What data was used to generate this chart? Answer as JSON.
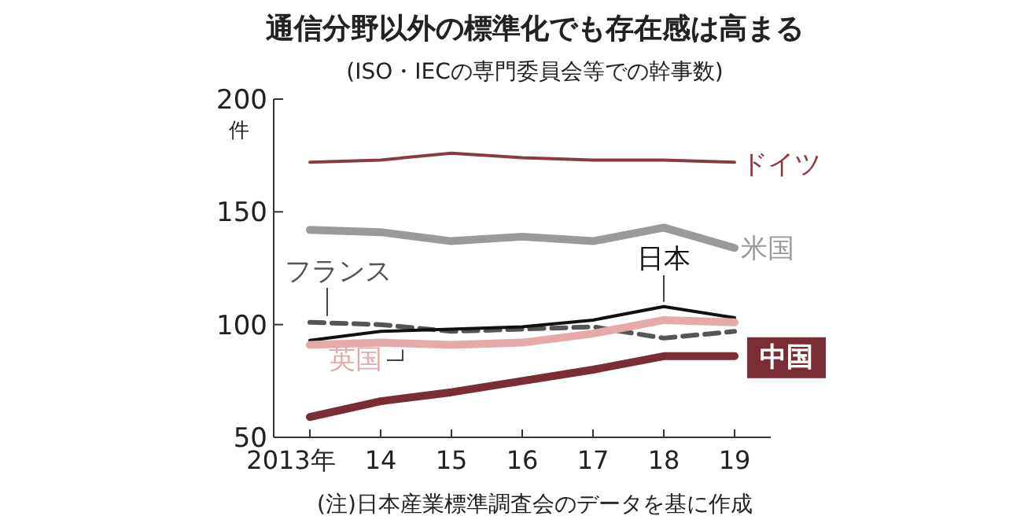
{
  "chart_data": {
    "type": "line",
    "title": "通信分野以外の標準化でも存在感は高まる",
    "subtitle": "(ISO・IECの専門委員会等での幹事数)",
    "ylabel": "件",
    "categories": [
      "2013年",
      "14",
      "15",
      "16",
      "17",
      "18",
      "19"
    ],
    "ylim": [
      50,
      200
    ],
    "yticks": [
      50,
      100,
      150,
      200
    ],
    "grid": false,
    "legend": false,
    "marker": "none",
    "annotations": [
      "(注)日本産業標準調査会のデータを基に作成"
    ],
    "series": [
      {
        "name": "ドイツ",
        "color": "#8b3a3e",
        "values": [
          172,
          173,
          176,
          174,
          173,
          173,
          172
        ]
      },
      {
        "name": "米国",
        "color": "#9a9a9a",
        "values": [
          142,
          141,
          137,
          139,
          137,
          143,
          134
        ]
      },
      {
        "name": "フランス",
        "color": "#555555",
        "line_style": "dashed",
        "values": [
          101,
          100,
          97,
          98,
          99,
          94,
          97
        ]
      },
      {
        "name": "日本",
        "color": "#111111",
        "values": [
          93,
          97,
          98,
          99,
          102,
          108,
          103
        ]
      },
      {
        "name": "英国",
        "color": "#e5a9a9",
        "values": [
          91,
          92,
          91,
          92,
          96,
          102,
          101
        ]
      },
      {
        "name": "中国",
        "color": "#7b2d35",
        "values": [
          59,
          66,
          70,
          75,
          80,
          86,
          86
        ]
      }
    ]
  }
}
